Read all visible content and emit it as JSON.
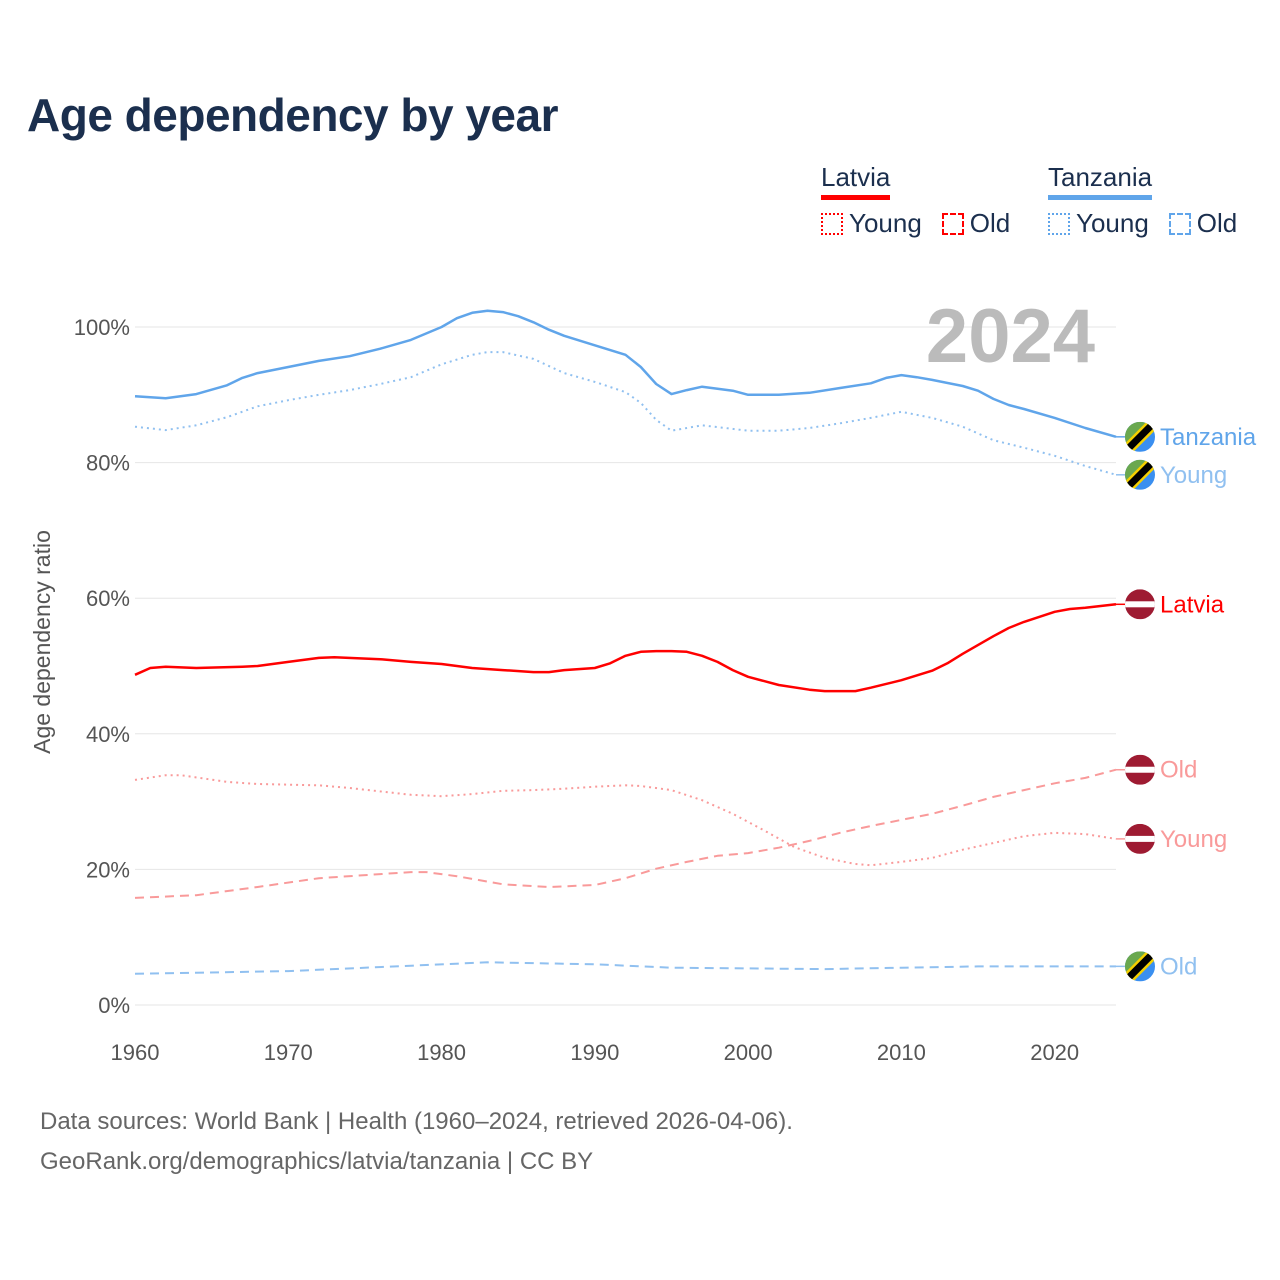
{
  "title": "Age dependency by year",
  "legend": {
    "groups": [
      {
        "country": "Latvia",
        "color": "#ff0000",
        "young": "Young",
        "old": "Old"
      },
      {
        "country": "Tanzania",
        "color": "#60a5ea",
        "young": "Young",
        "old": "Old"
      }
    ]
  },
  "year_label": "2024",
  "footer": {
    "line1": "Data sources: World Bank | Health (1960–2024, retrieved 2026-04-06).",
    "line2": "GeoRank.org/demographics/latvia/tanzania | CC BY"
  },
  "chart_data": {
    "type": "line",
    "title": "Age dependency by year",
    "xlabel": "",
    "ylabel": "Age dependency ratio",
    "xlim": [
      1960,
      2024
    ],
    "ylim": [
      0,
      100
    ],
    "x_ticks": [
      "1960",
      "1970",
      "1980",
      "1990",
      "2000",
      "2010",
      "2020"
    ],
    "y_ticks": [
      "0%",
      "20%",
      "40%",
      "60%",
      "80%",
      "100%"
    ],
    "grid": true,
    "series": [
      {
        "name": "Tanzania",
        "end_label": "Tanzania",
        "country": "tanzania",
        "style": "solid",
        "color": "#60a5ea",
        "x": [
          1960,
          1962,
          1964,
          1966,
          1967,
          1968,
          1970,
          1972,
          1974,
          1976,
          1978,
          1980,
          1981,
          1982,
          1983,
          1984,
          1985,
          1986,
          1987,
          1988,
          1990,
          1992,
          1993,
          1994,
          1995,
          1996,
          1997,
          1998,
          1999,
          2000,
          2002,
          2004,
          2006,
          2008,
          2009,
          2010,
          2011,
          2012,
          2014,
          2015,
          2016,
          2017,
          2018,
          2020,
          2022,
          2024
        ],
        "y": [
          89.8,
          89.5,
          90.1,
          91.4,
          92.5,
          93.2,
          94.1,
          95.0,
          95.7,
          96.8,
          98.1,
          100.0,
          101.3,
          102.1,
          102.4,
          102.2,
          101.6,
          100.7,
          99.6,
          98.7,
          97.3,
          95.9,
          94.1,
          91.6,
          90.1,
          90.7,
          91.2,
          90.9,
          90.6,
          90.0,
          90.0,
          90.3,
          91.0,
          91.7,
          92.5,
          92.9,
          92.6,
          92.2,
          91.3,
          90.6,
          89.4,
          88.5,
          87.9,
          86.6,
          85.1,
          83.8
        ]
      },
      {
        "name": "Tanzania Young",
        "end_label": "Young",
        "country": "tanzania",
        "style": "dotted",
        "color": "#90c0f0",
        "x": [
          1960,
          1962,
          1964,
          1966,
          1968,
          1970,
          1972,
          1974,
          1976,
          1978,
          1980,
          1982,
          1983,
          1984,
          1986,
          1988,
          1990,
          1992,
          1993,
          1994,
          1995,
          1997,
          2000,
          2002,
          2004,
          2006,
          2008,
          2010,
          2012,
          2014,
          2016,
          2018,
          2020,
          2022,
          2024
        ],
        "y": [
          85.3,
          84.8,
          85.5,
          86.7,
          88.3,
          89.2,
          90.0,
          90.7,
          91.6,
          92.6,
          94.5,
          95.9,
          96.3,
          96.3,
          95.3,
          93.2,
          91.9,
          90.4,
          88.8,
          86.3,
          84.7,
          85.5,
          84.7,
          84.7,
          85.1,
          85.8,
          86.6,
          87.5,
          86.6,
          85.3,
          83.3,
          82.2,
          81.0,
          79.5,
          78.2
        ]
      },
      {
        "name": "Tanzania Old",
        "end_label": "Old",
        "country": "tanzania",
        "style": "dashed",
        "color": "#90c0f0",
        "x": [
          1960,
          1970,
          1978,
          1983,
          1990,
          1995,
          2005,
          2010,
          2015,
          2024
        ],
        "y": [
          4.6,
          5.0,
          5.8,
          6.3,
          6.0,
          5.5,
          5.3,
          5.5,
          5.7,
          5.7
        ]
      },
      {
        "name": "Latvia",
        "end_label": "Latvia",
        "country": "latvia",
        "style": "solid",
        "color": "#ff0000",
        "x": [
          1960,
          1961,
          1962,
          1964,
          1967,
          1968,
          1970,
          1972,
          1973,
          1976,
          1978,
          1980,
          1982,
          1984,
          1986,
          1987,
          1988,
          1990,
          1991,
          1992,
          1993,
          1994,
          1995,
          1996,
          1997,
          1998,
          1999,
          2000,
          2002,
          2004,
          2005,
          2007,
          2008,
          2010,
          2012,
          2013,
          2014,
          2016,
          2017,
          2018,
          2020,
          2021,
          2022,
          2024
        ],
        "y": [
          48.7,
          49.7,
          49.9,
          49.7,
          49.9,
          50.0,
          50.6,
          51.2,
          51.3,
          51.0,
          50.6,
          50.3,
          49.7,
          49.4,
          49.1,
          49.1,
          49.4,
          49.7,
          50.4,
          51.5,
          52.1,
          52.2,
          52.2,
          52.1,
          51.5,
          50.6,
          49.4,
          48.4,
          47.2,
          46.5,
          46.3,
          46.3,
          46.8,
          47.9,
          49.3,
          50.4,
          51.8,
          54.4,
          55.6,
          56.5,
          58.0,
          58.4,
          58.6,
          59.1
        ]
      },
      {
        "name": "Latvia Old",
        "end_label": "Old",
        "country": "latvia",
        "style": "dashed",
        "color": "#f99a9a",
        "x": [
          1960,
          1964,
          1968,
          1972,
          1976,
          1978,
          1979,
          1981,
          1984,
          1987,
          1990,
          1992,
          1994,
          1996,
          1998,
          2000,
          2002,
          2004,
          2006,
          2008,
          2010,
          2012,
          2014,
          2016,
          2018,
          2020,
          2022,
          2024
        ],
        "y": [
          15.8,
          16.2,
          17.4,
          18.7,
          19.3,
          19.6,
          19.6,
          19.0,
          17.8,
          17.4,
          17.7,
          18.7,
          20.1,
          21.1,
          22.0,
          22.4,
          23.2,
          24.2,
          25.4,
          26.4,
          27.3,
          28.2,
          29.4,
          30.7,
          31.7,
          32.7,
          33.5,
          34.7
        ]
      },
      {
        "name": "Latvia Young",
        "end_label": "Young",
        "country": "latvia",
        "style": "dotted",
        "color": "#f99a9a",
        "x": [
          1960,
          1962,
          1963,
          1966,
          1968,
          1972,
          1974,
          1978,
          1980,
          1982,
          1984,
          1986,
          1988,
          1990,
          1992,
          1993,
          1995,
          1997,
          1999,
          2001,
          2003,
          2005,
          2007,
          2008,
          2010,
          2012,
          2014,
          2016,
          2018,
          2020,
          2022,
          2024
        ],
        "y": [
          33.2,
          33.9,
          33.9,
          32.9,
          32.6,
          32.4,
          32.0,
          31.0,
          30.8,
          31.1,
          31.6,
          31.7,
          31.9,
          32.2,
          32.4,
          32.3,
          31.7,
          30.2,
          28.2,
          25.8,
          23.3,
          21.7,
          20.8,
          20.6,
          21.1,
          21.7,
          22.9,
          23.9,
          24.9,
          25.4,
          25.2,
          24.5
        ]
      }
    ]
  }
}
